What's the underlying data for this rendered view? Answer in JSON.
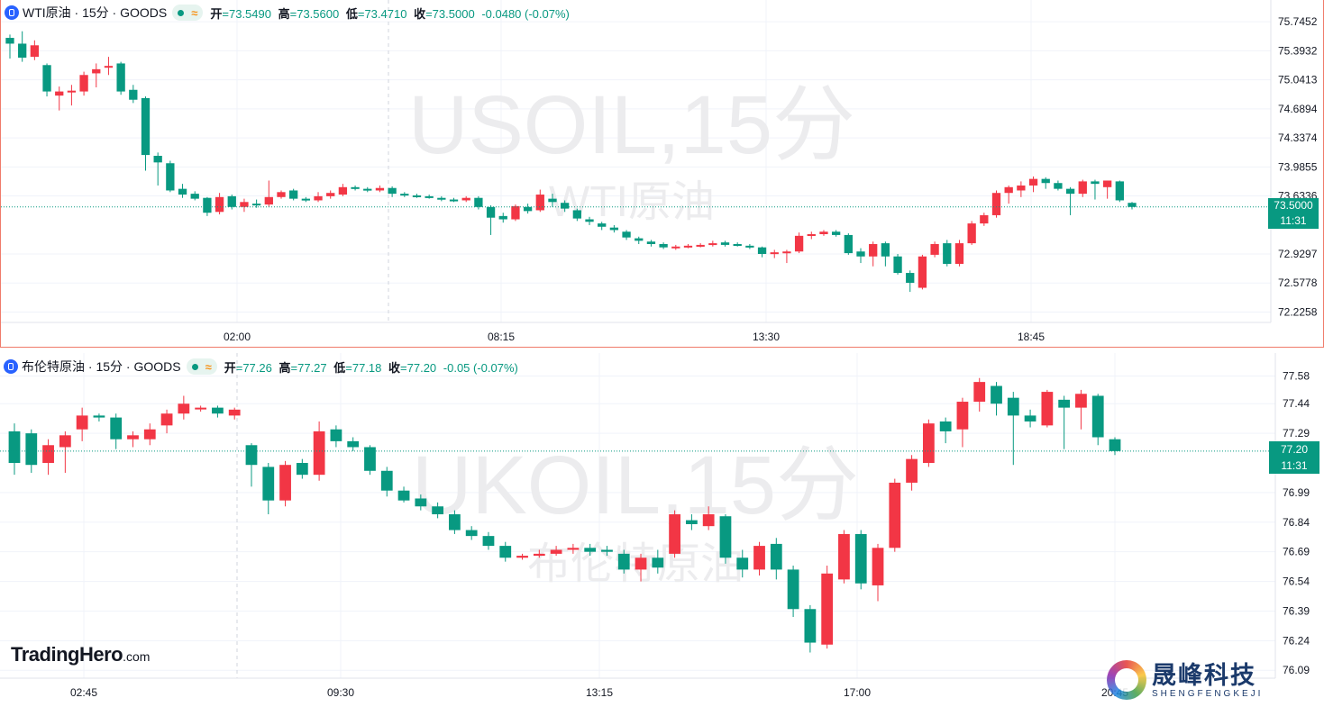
{
  "legend1": {
    "title": "WTI原油 · 15分 · GOODS",
    "open_label": "开",
    "open": "=73.5490",
    "high_label": "高",
    "high": "=73.5600",
    "low_label": "低",
    "low": "=73.4710",
    "close_label": "收",
    "close": "=73.5000",
    "change": "-0.0480 (-0.07%)"
  },
  "legend2": {
    "title": "布伦特原油 · 15分 · GOODS",
    "open_label": "开",
    "open": "=77.26",
    "high_label": "高",
    "high": "=77.27",
    "low_label": "低",
    "low": "=77.18",
    "close_label": "收",
    "close": "=77.20",
    "change": "-0.05 (-0.07%)"
  },
  "tags1": {
    "price": "73.5000",
    "countdown": "11:31"
  },
  "tags2": {
    "price": "77.20",
    "countdown": "11:31"
  },
  "logo": {
    "name": "TradingHero",
    "suffix": ".com"
  },
  "brand": {
    "name_cn": "晟峰科技",
    "name_en": "SHENGFENGKEJI"
  },
  "colors": {
    "up": "#f23645",
    "down": "#089981",
    "accent": "#2962ff",
    "pane_border": "#f07b6a"
  },
  "chart_data": [
    {
      "type": "candlestick",
      "watermark": "USOIL,15分",
      "watermark_sub": "WTI原油",
      "y_ticks": [
        75.7452,
        75.3932,
        75.0413,
        74.6894,
        74.3374,
        73.9855,
        73.6336,
        72.9297,
        72.5778,
        72.2258
      ],
      "ylim": [
        72.1,
        75.9
      ],
      "x_ticks": [
        "02:00",
        "08:15",
        "13:30",
        "18:45"
      ],
      "session_break": "approx 06:00",
      "last_price": 73.5,
      "candles": [
        [
          75.55,
          75.48,
          75.59,
          75.3
        ],
        [
          75.48,
          75.31,
          75.63,
          75.26
        ],
        [
          75.32,
          75.46,
          75.52,
          75.28
        ],
        [
          75.22,
          74.9,
          75.24,
          74.84
        ],
        [
          74.85,
          74.9,
          74.96,
          74.67
        ],
        [
          74.9,
          74.91,
          74.98,
          74.73
        ],
        [
          74.9,
          75.1,
          75.14,
          74.85
        ],
        [
          75.12,
          75.17,
          75.24,
          74.95
        ],
        [
          75.19,
          75.21,
          75.32,
          75.1
        ],
        [
          75.24,
          74.9,
          75.26,
          74.86
        ],
        [
          74.92,
          74.8,
          74.98,
          74.76
        ],
        [
          74.82,
          74.13,
          74.84,
          73.94
        ],
        [
          74.12,
          74.04,
          74.16,
          73.76
        ],
        [
          74.03,
          73.7,
          74.06,
          73.68
        ],
        [
          73.72,
          73.65,
          73.78,
          73.61
        ],
        [
          73.66,
          73.6,
          73.69,
          73.58
        ],
        [
          73.61,
          73.43,
          73.62,
          73.39
        ],
        [
          73.44,
          73.62,
          73.67,
          73.41
        ],
        [
          73.63,
          73.5,
          73.65,
          73.47
        ],
        [
          73.5,
          73.56,
          73.6,
          73.44
        ],
        [
          73.54,
          73.52,
          73.59,
          73.49
        ],
        [
          73.53,
          73.62,
          73.82,
          73.5
        ],
        [
          73.62,
          73.68,
          73.7,
          73.6
        ],
        [
          73.7,
          73.6,
          73.72,
          73.58
        ],
        [
          73.6,
          73.58,
          73.62,
          73.56
        ],
        [
          73.58,
          73.63,
          73.68,
          73.56
        ],
        [
          73.63,
          73.67,
          73.7,
          73.6
        ],
        [
          73.65,
          73.74,
          73.78,
          73.63
        ],
        [
          73.74,
          73.72,
          73.76,
          73.7
        ],
        [
          73.72,
          73.7,
          73.74,
          73.68
        ],
        [
          73.7,
          73.73,
          73.76,
          73.68
        ],
        [
          73.73,
          73.66,
          73.75,
          73.62
        ],
        [
          73.66,
          73.64,
          73.68,
          73.62
        ],
        [
          73.64,
          73.63,
          73.66,
          73.61
        ],
        [
          73.63,
          73.61,
          73.65,
          73.6
        ],
        [
          73.61,
          73.59,
          73.63,
          73.57
        ],
        [
          73.59,
          73.58,
          73.61,
          73.56
        ],
        [
          73.58,
          73.61,
          73.63,
          73.56
        ],
        [
          73.61,
          73.5,
          73.63,
          73.47
        ],
        [
          73.5,
          73.37,
          73.52,
          73.16
        ],
        [
          73.39,
          73.35,
          73.43,
          73.31
        ],
        [
          73.35,
          73.51,
          73.53,
          73.33
        ],
        [
          73.5,
          73.45,
          73.54,
          73.42
        ],
        [
          73.46,
          73.65,
          73.71,
          73.44
        ],
        [
          73.6,
          73.56,
          73.66,
          73.5
        ],
        [
          73.55,
          73.48,
          73.58,
          73.44
        ],
        [
          73.46,
          73.36,
          73.48,
          73.33
        ],
        [
          73.35,
          73.32,
          73.38,
          73.28
        ],
        [
          73.3,
          73.26,
          73.32,
          73.22
        ],
        [
          73.25,
          73.22,
          73.28,
          73.19
        ],
        [
          73.2,
          73.13,
          73.22,
          73.1
        ],
        [
          73.12,
          73.09,
          73.14,
          73.05
        ],
        [
          73.08,
          73.05,
          73.1,
          73.02
        ],
        [
          73.05,
          73.01,
          73.07,
          72.99
        ],
        [
          73.0,
          73.02,
          73.04,
          72.98
        ],
        [
          73.02,
          73.03,
          73.05,
          73.0
        ],
        [
          73.03,
          73.04,
          73.06,
          73.01
        ],
        [
          73.05,
          73.06,
          73.09,
          73.02
        ],
        [
          73.07,
          73.04,
          73.09,
          73.02
        ],
        [
          73.05,
          73.04,
          73.07,
          73.02
        ],
        [
          73.03,
          73.01,
          73.05,
          72.99
        ],
        [
          73.01,
          72.93,
          73.02,
          72.89
        ],
        [
          72.93,
          72.95,
          72.98,
          72.88
        ],
        [
          72.94,
          72.96,
          72.98,
          72.82
        ],
        [
          72.96,
          73.15,
          73.19,
          72.94
        ],
        [
          73.16,
          73.17,
          73.2,
          73.11
        ],
        [
          73.17,
          73.2,
          73.22,
          73.15
        ],
        [
          73.2,
          73.16,
          73.22,
          73.14
        ],
        [
          73.16,
          72.94,
          73.18,
          72.92
        ],
        [
          72.96,
          72.9,
          73.0,
          72.82
        ],
        [
          72.9,
          73.05,
          73.08,
          72.78
        ],
        [
          73.06,
          72.9,
          73.08,
          72.78
        ],
        [
          72.9,
          72.7,
          72.93,
          72.68
        ],
        [
          72.7,
          72.58,
          72.73,
          72.47
        ],
        [
          72.52,
          72.9,
          72.92,
          72.5
        ],
        [
          72.92,
          73.05,
          73.08,
          72.89
        ],
        [
          73.06,
          72.81,
          73.1,
          72.78
        ],
        [
          72.81,
          73.06,
          73.1,
          72.78
        ],
        [
          73.06,
          73.3,
          73.33,
          73.04
        ],
        [
          73.3,
          73.4,
          73.43,
          73.27
        ],
        [
          73.4,
          73.67,
          73.7,
          73.37
        ],
        [
          73.67,
          73.74,
          73.76,
          73.54
        ],
        [
          73.7,
          73.76,
          73.81,
          73.62
        ],
        [
          73.76,
          73.84,
          73.87,
          73.68
        ],
        [
          73.84,
          73.79,
          73.86,
          73.72
        ],
        [
          73.79,
          73.72,
          73.82,
          73.7
        ],
        [
          73.72,
          73.66,
          73.74,
          73.4
        ],
        [
          73.66,
          73.81,
          73.83,
          73.62
        ],
        [
          73.81,
          73.78,
          73.83,
          73.59
        ],
        [
          73.74,
          73.82,
          73.82,
          73.6
        ],
        [
          73.81,
          73.58,
          73.82,
          73.56
        ],
        [
          73.55,
          73.5,
          73.56,
          73.47
        ]
      ]
    },
    {
      "type": "candlestick",
      "watermark": "UKOIL,15分",
      "watermark_sub": "布伦特原油",
      "y_ticks": [
        77.58,
        77.44,
        77.29,
        76.99,
        76.84,
        76.69,
        76.54,
        76.39,
        76.24,
        76.09
      ],
      "ylim": [
        76.05,
        77.66
      ],
      "x_ticks": [
        "02:45",
        "09:30",
        "13:15",
        "17:00",
        "20:45"
      ],
      "session_break": "approx 07:00",
      "last_price": 77.2,
      "candles": [
        [
          77.3,
          77.14,
          77.34,
          77.08
        ],
        [
          77.29,
          77.13,
          77.31,
          77.09
        ],
        [
          77.14,
          77.23,
          77.26,
          77.08
        ],
        [
          77.22,
          77.28,
          77.3,
          77.09
        ],
        [
          77.31,
          77.38,
          77.42,
          77.25
        ],
        [
          77.38,
          77.37,
          77.39,
          77.35
        ],
        [
          77.37,
          77.26,
          77.39,
          77.21
        ],
        [
          77.26,
          77.28,
          77.3,
          77.22
        ],
        [
          77.26,
          77.31,
          77.34,
          77.23
        ],
        [
          77.33,
          77.39,
          77.41,
          77.29
        ],
        [
          77.39,
          77.44,
          77.48,
          77.36
        ],
        [
          77.42,
          77.42,
          77.43,
          77.4
        ],
        [
          77.42,
          77.39,
          77.43,
          77.37
        ],
        [
          77.38,
          77.41,
          77.42,
          77.36
        ],
        [
          77.23,
          77.13,
          77.24,
          77.02
        ],
        [
          77.12,
          76.95,
          77.14,
          76.88
        ],
        [
          76.95,
          77.13,
          77.15,
          76.92
        ],
        [
          77.14,
          77.08,
          77.16,
          77.06
        ],
        [
          77.08,
          77.3,
          77.35,
          77.05
        ],
        [
          77.31,
          77.25,
          77.33,
          77.22
        ],
        [
          77.25,
          77.22,
          77.27,
          77.2
        ],
        [
          77.22,
          77.1,
          77.23,
          77.08
        ],
        [
          77.1,
          77.0,
          77.12,
          76.97
        ],
        [
          77.0,
          76.95,
          77.02,
          76.94
        ],
        [
          76.96,
          76.92,
          76.98,
          76.9
        ],
        [
          76.92,
          76.88,
          76.94,
          76.86
        ],
        [
          76.88,
          76.8,
          76.9,
          76.78
        ],
        [
          76.8,
          76.77,
          76.82,
          76.75
        ],
        [
          76.77,
          76.72,
          76.79,
          76.7
        ],
        [
          76.72,
          76.66,
          76.74,
          76.64
        ],
        [
          76.66,
          76.67,
          76.68,
          76.65
        ],
        [
          76.67,
          76.68,
          76.7,
          76.66
        ],
        [
          76.68,
          76.7,
          76.72,
          76.67
        ],
        [
          76.7,
          76.71,
          76.73,
          76.68
        ],
        [
          76.71,
          76.69,
          76.73,
          76.67
        ],
        [
          76.7,
          76.69,
          76.72,
          76.67
        ],
        [
          76.68,
          76.6,
          76.7,
          76.58
        ],
        [
          76.6,
          76.66,
          76.68,
          76.54
        ],
        [
          76.66,
          76.61,
          76.7,
          76.58
        ],
        [
          76.68,
          76.88,
          76.9,
          76.66
        ],
        [
          76.85,
          76.83,
          76.88,
          76.8
        ],
        [
          76.82,
          76.88,
          76.92,
          76.8
        ],
        [
          76.87,
          76.66,
          76.88,
          76.63
        ],
        [
          76.66,
          76.6,
          76.7,
          76.56
        ],
        [
          76.6,
          76.72,
          76.74,
          76.57
        ],
        [
          76.73,
          76.6,
          76.76,
          76.55
        ],
        [
          76.6,
          76.4,
          76.62,
          76.36
        ],
        [
          76.4,
          76.23,
          76.42,
          76.18
        ],
        [
          76.22,
          76.58,
          76.62,
          76.2
        ],
        [
          76.55,
          76.78,
          76.8,
          76.53
        ],
        [
          76.78,
          76.53,
          76.8,
          76.5
        ],
        [
          76.52,
          76.71,
          76.73,
          76.44
        ],
        [
          76.71,
          77.04,
          77.06,
          76.69
        ],
        [
          77.04,
          77.16,
          77.18,
          77.0
        ],
        [
          77.14,
          77.34,
          77.36,
          77.12
        ],
        [
          77.35,
          77.3,
          77.37,
          77.24
        ],
        [
          77.31,
          77.45,
          77.47,
          77.22
        ],
        [
          77.45,
          77.55,
          77.57,
          77.4
        ],
        [
          77.53,
          77.44,
          77.55,
          77.38
        ],
        [
          77.47,
          77.38,
          77.5,
          77.13
        ],
        [
          77.38,
          77.35,
          77.41,
          77.32
        ],
        [
          77.33,
          77.5,
          77.51,
          77.32
        ],
        [
          77.46,
          77.42,
          77.48,
          77.21
        ],
        [
          77.42,
          77.49,
          77.51,
          77.31
        ],
        [
          77.48,
          77.27,
          77.49,
          77.23
        ],
        [
          77.26,
          77.2,
          77.27,
          77.18
        ]
      ]
    }
  ]
}
